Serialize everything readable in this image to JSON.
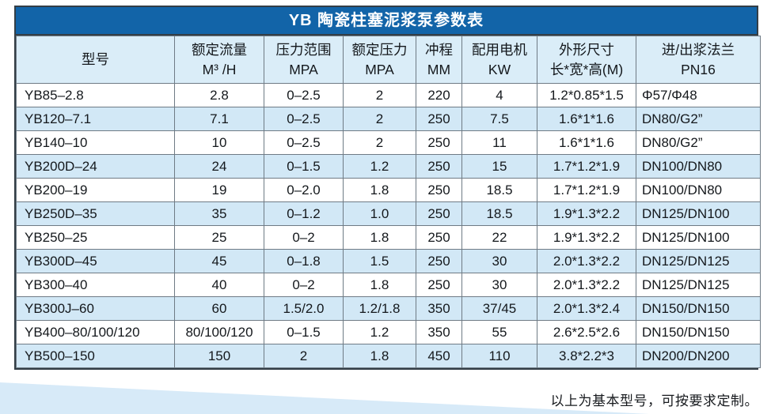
{
  "colors": {
    "title_bar_bg": "#1264a8",
    "title_text": "#ffffff",
    "header_row_bg": "#daedf8",
    "alt_row_bg": "#d2e8f6",
    "grid_line": "#6f7b85",
    "outer_border": "#333e46",
    "wedge_decoration": "#d7eaf8"
  },
  "table": {
    "title": "YB 陶瓷柱塞泥浆泵参数表",
    "columns": [
      {
        "line1": "型号",
        "line2": ""
      },
      {
        "line1": "额定流量",
        "line2": "M³ /H"
      },
      {
        "line1": "压力范围",
        "line2": "MPA"
      },
      {
        "line1": "额定压力",
        "line2": "MPA"
      },
      {
        "line1": "冲程",
        "line2": "MM"
      },
      {
        "line1": "配用电机",
        "line2": "KW"
      },
      {
        "line1": "外形尺寸",
        "line2": "长*宽*高(M)"
      },
      {
        "line1": "进/出浆法兰",
        "line2": "PN16"
      }
    ],
    "rows": [
      [
        "YB85–2.8",
        "2.8",
        "0–2.5",
        "2",
        "220",
        "4",
        "1.2*0.85*1.5",
        "Φ57/Φ48"
      ],
      [
        "YB120–7.1",
        "7.1",
        "0–2.5",
        "2",
        "250",
        "7.5",
        "1.6*1*1.6",
        "DN80/G2”"
      ],
      [
        "YB140–10",
        "10",
        "0–2.5",
        "2",
        "250",
        "11",
        "1.6*1*1.6",
        "DN80/G2”"
      ],
      [
        "YB200D–24",
        "24",
        "0–1.5",
        "1.2",
        "250",
        "15",
        "1.7*1.2*1.9",
        "DN100/DN80"
      ],
      [
        "YB200–19",
        "19",
        "0–2.0",
        "1.8",
        "250",
        "18.5",
        "1.7*1.2*1.9",
        "DN100/DN80"
      ],
      [
        "YB250D–35",
        "35",
        "0–1.2",
        "1.0",
        "250",
        "18.5",
        "1.9*1.3*2.2",
        "DN125/DN100"
      ],
      [
        "YB250–25",
        "25",
        "0–2",
        "1.8",
        "250",
        "22",
        "1.9*1.3*2.2",
        "DN125/DN100"
      ],
      [
        "YB300D–45",
        "45",
        "0–1.8",
        "1.5",
        "250",
        "30",
        "2.0*1.3*2.2",
        "DN125/DN125"
      ],
      [
        "YB300–40",
        "40",
        "0–2",
        "1.8",
        "250",
        "30",
        "2.0*1.3*2.2",
        "DN125/DN125"
      ],
      [
        "YB300J–60",
        "60",
        "1.5/2.0",
        "1.2/1.8",
        "350",
        "37/45",
        "2.0*1.3*2.4",
        "DN150/DN150"
      ],
      [
        "YB400–80/100/120",
        "80/100/120",
        "0–1.5",
        "1.2",
        "350",
        "55",
        "2.6*2.5*2.6",
        "DN150/DN150"
      ],
      [
        "YB500–150",
        "150",
        "2",
        "1.8",
        "450",
        "110",
        "3.8*2.2*3",
        "DN200/DN200"
      ]
    ]
  },
  "footer": {
    "note": "以上为基本型号，可按要求定制。"
  }
}
